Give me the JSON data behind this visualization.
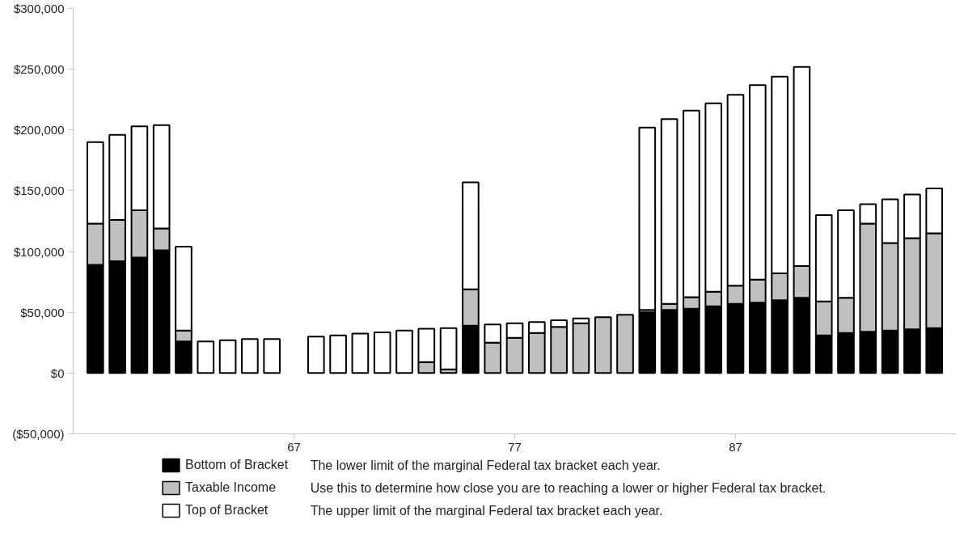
{
  "chart_data": {
    "type": "bar",
    "stacked": true,
    "categories": [
      null,
      null,
      null,
      null,
      null,
      null,
      null,
      null,
      null,
      "67",
      null,
      null,
      null,
      null,
      null,
      null,
      null,
      null,
      null,
      "77",
      null,
      null,
      null,
      null,
      null,
      null,
      null,
      null,
      null,
      "87",
      null,
      null,
      null,
      null,
      null,
      null,
      null,
      null,
      null
    ],
    "ylim": [
      -50000,
      300000
    ],
    "yticks": [
      {
        "value": -50000,
        "label": "($50,000)"
      },
      {
        "value": 0,
        "label": "$0"
      },
      {
        "value": 50000,
        "label": "$50,000"
      },
      {
        "value": 100000,
        "label": "$100,000"
      },
      {
        "value": 150000,
        "label": "$150,000"
      },
      {
        "value": 200000,
        "label": "$200,000"
      },
      {
        "value": 250000,
        "label": "$250,000"
      },
      {
        "value": 300000,
        "label": "$300,000"
      }
    ],
    "grid": false,
    "legend": "bottom",
    "series": [
      {
        "name": "Bottom of Bracket",
        "color": "#000000",
        "values": [
          89000,
          92000,
          95000,
          101000,
          26000,
          0,
          0,
          0,
          0,
          0,
          0,
          0,
          0,
          0,
          0,
          0,
          0,
          39000,
          0,
          0,
          0,
          0,
          0,
          0,
          0,
          50000,
          52000,
          53000,
          55000,
          57000,
          58000,
          60000,
          62000,
          31000,
          33000,
          34000,
          35000,
          36000,
          37000
        ]
      },
      {
        "name": "Taxable Income",
        "color": "#c0c0c0",
        "values": [
          34000,
          34000,
          39000,
          18000,
          9000,
          0,
          0,
          0,
          0,
          0,
          0,
          0,
          0,
          0,
          0,
          9000,
          3000,
          30000,
          25000,
          29000,
          33000,
          38000,
          41000,
          46000,
          48000,
          2000,
          5000,
          9500,
          12000,
          15000,
          19000,
          22000,
          26000,
          28000,
          29000,
          89000,
          72000,
          75000,
          78000
        ]
      },
      {
        "name": "Top of Bracket",
        "color": "#ffffff",
        "values": [
          67000,
          70000,
          69000,
          85000,
          69000,
          26000,
          27000,
          28000,
          28000,
          0,
          30000,
          31000,
          32500,
          33500,
          35000,
          27500,
          34000,
          88000,
          15000,
          12000,
          9000,
          5500,
          4000,
          0,
          0,
          150000,
          152000,
          153500,
          155000,
          157000,
          160000,
          162000,
          164000,
          71000,
          72000,
          16000,
          36000,
          36000,
          37000
        ]
      }
    ],
    "annotations": [
      "The lower limit of the marginal Federal tax bracket each year.",
      "Use this to determine how close you are to reaching a lower or higher Federal tax bracket.",
      "The upper limit of the marginal Federal tax bracket each year."
    ]
  }
}
